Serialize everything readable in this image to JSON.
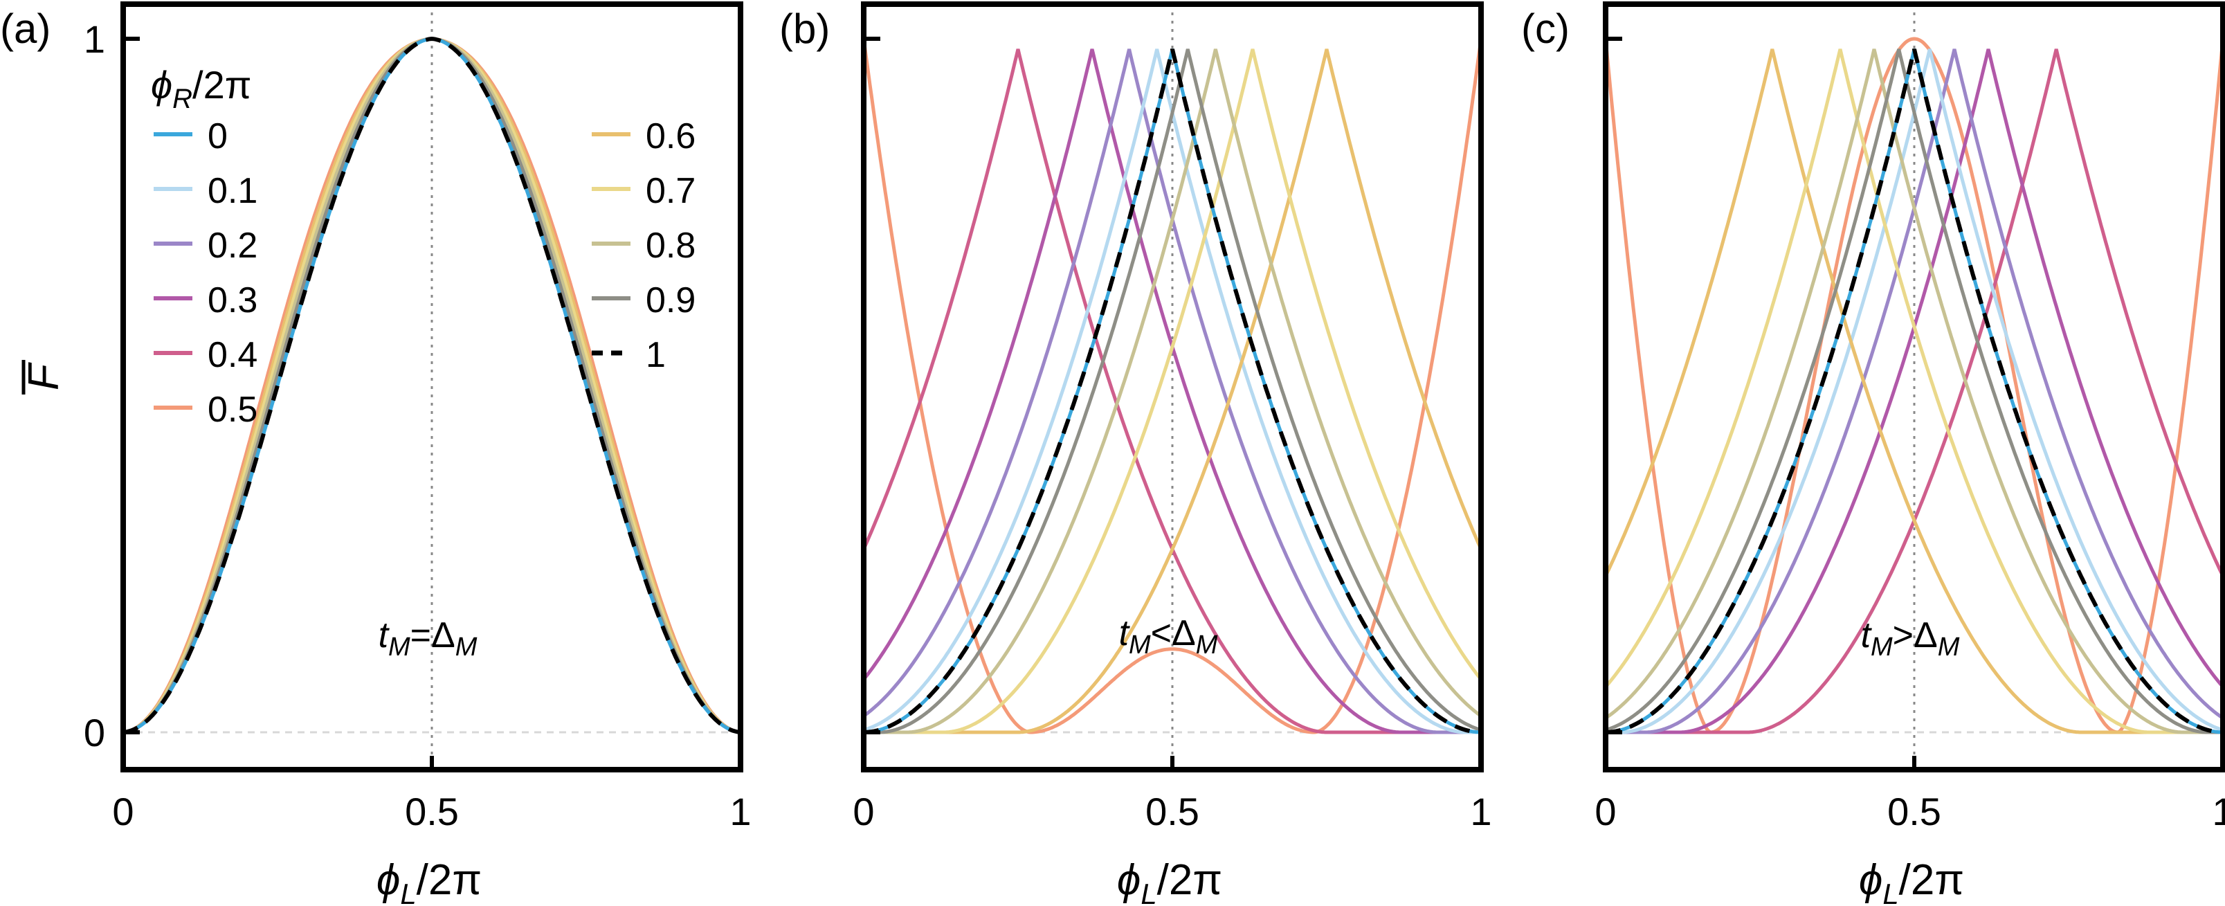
{
  "figure": {
    "ylabel": "F",
    "xlabel_parts": {
      "sym": "ϕ",
      "sub": "L",
      "rest": "/2π"
    },
    "legend": {
      "title_parts": {
        "sym": "ϕ",
        "sub": "R",
        "rest": "/2π"
      },
      "entries": [
        {
          "label": "0",
          "color": "#3aa7dc"
        },
        {
          "label": "0.1",
          "color": "#b5d9f0"
        },
        {
          "label": "0.2",
          "color": "#9b86c8"
        },
        {
          "label": "0.3",
          "color": "#b158a8"
        },
        {
          "label": "0.4",
          "color": "#cf5e8c"
        },
        {
          "label": "0.5",
          "color": "#f49a78"
        },
        {
          "label": "0.6",
          "color": "#e9c06e"
        },
        {
          "label": "0.7",
          "color": "#ead88a"
        },
        {
          "label": "0.8",
          "color": "#c7c192"
        },
        {
          "label": "0.9",
          "color": "#8e8e86"
        },
        {
          "label": "1",
          "color": "#000000",
          "dashed": true
        }
      ]
    }
  },
  "chart_data": [
    {
      "type": "line",
      "panel_label": "(a)",
      "annotation": {
        "sym": "t",
        "sub1": "M",
        "op": "=",
        "delta": "Δ",
        "sub2": "M"
      },
      "case": "equal",
      "xlim": [
        0,
        1
      ],
      "ylim": [
        0,
        1
      ],
      "xticks": [
        "0",
        "0.5",
        "1"
      ],
      "yticks": [
        "0",
        "1"
      ],
      "series_phiR": [
        0,
        0.1,
        0.2,
        0.3,
        0.4,
        0.5,
        0.6,
        0.7,
        0.8,
        0.9,
        1
      ],
      "peak_x": 0.5,
      "peak_y": 1,
      "note": "All ϕR curves peak at ϕL/2π = 0.5 with F = 1; widest curve is ϕR/2π = 0.5"
    },
    {
      "type": "line",
      "panel_label": "(b)",
      "annotation": {
        "sym": "t",
        "sub1": "M",
        "op": "<",
        "delta": "Δ",
        "sub2": "M"
      },
      "case": "less",
      "xlim": [
        0,
        1
      ],
      "ylim": [
        0,
        1
      ],
      "xticks": [
        "0",
        "0.5",
        "1"
      ],
      "yticks": [],
      "series_phiR": [
        0,
        0.1,
        0.2,
        0.3,
        0.4,
        0.5,
        0.6,
        0.7,
        0.8,
        0.9,
        1
      ],
      "peak_x": [
        0.5,
        0.475,
        0.43,
        0.37,
        0.25,
        null,
        0.75,
        0.63,
        0.57,
        0.525,
        0.5
      ],
      "note": "ϕR/2π = 0.5 curve has maxima of 1 at ϕL/2π = 0 and 1, minima near 0.27 and 0.73, local max ≈ 0.12 at 0.5"
    },
    {
      "type": "line",
      "panel_label": "(c)",
      "annotation": {
        "sym": "t",
        "sub1": "M",
        "op": ">",
        "delta": "Δ",
        "sub2": "M"
      },
      "case": "greater",
      "xlim": [
        0,
        1
      ],
      "ylim": [
        0,
        1
      ],
      "xticks": [
        "0",
        "0.5",
        "1"
      ],
      "yticks": [],
      "series_phiR": [
        0,
        0.1,
        0.2,
        0.3,
        0.4,
        0.5,
        0.6,
        0.7,
        0.8,
        0.9,
        1
      ],
      "peak_x": [
        0.5,
        0.525,
        0.565,
        0.62,
        0.73,
        0.5,
        0.27,
        0.38,
        0.435,
        0.475,
        0.5
      ],
      "note": "ϕR/2π = 0.5 curve peaks at 0.5 (F = 1) with zeros near 0.17 and 0.83 and F = 1 at the edges"
    }
  ]
}
